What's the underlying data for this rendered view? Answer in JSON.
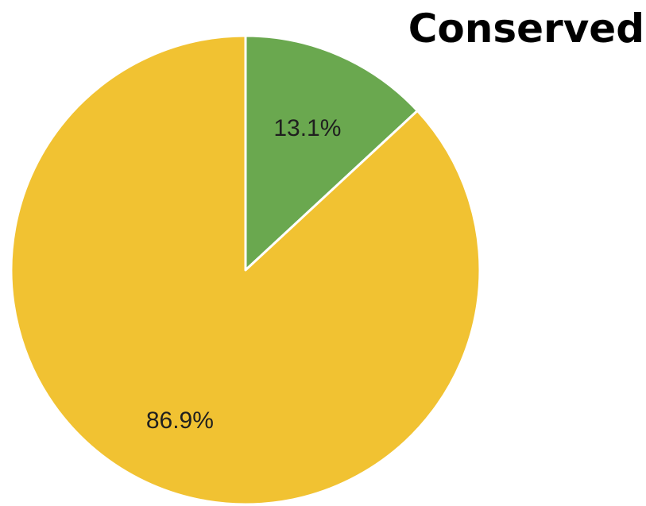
{
  "chart_data": {
    "type": "pie",
    "title": "Conserved",
    "slices": [
      {
        "label": "13.1%",
        "value": 13.1,
        "color": "#6aa84f"
      },
      {
        "label": "86.9%",
        "value": 86.9,
        "color": "#f1c232"
      }
    ],
    "start": "12 o'clock",
    "direction": "clockwise",
    "legend": "none"
  }
}
